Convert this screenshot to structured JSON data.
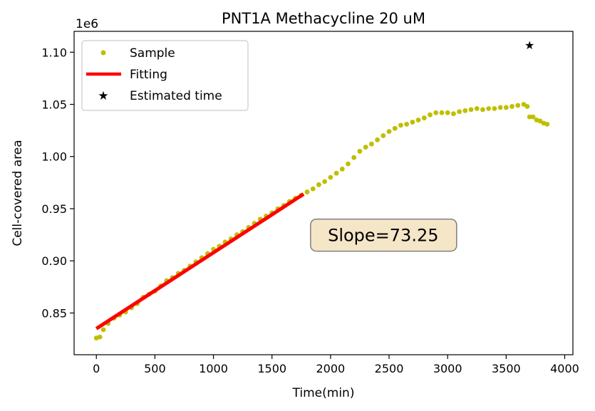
{
  "chart_data": {
    "type": "scatter",
    "title": "PNT1A Methacycline 20 uM",
    "xlabel": "Time(min)",
    "ylabel": "Cell-covered area",
    "y_offset_label": "1e6",
    "xlim": [
      -190,
      4070
    ],
    "ylim": [
      0.81,
      1.12
    ],
    "xticks": [
      0,
      500,
      1000,
      1500,
      2000,
      2500,
      3000,
      3500,
      4000
    ],
    "xtick_labels": [
      "0",
      "500",
      "1000",
      "1500",
      "2000",
      "2500",
      "3000",
      "3500",
      "4000"
    ],
    "yticks": [
      0.85,
      0.9,
      0.95,
      1.0,
      1.05,
      1.1
    ],
    "ytick_labels": [
      "0.85",
      "0.90",
      "0.95",
      "1.00",
      "1.05",
      "1.10"
    ],
    "legend": {
      "position": "top-left",
      "entries": [
        {
          "label": "Sample",
          "marker": "dot",
          "color": "#bfbf00"
        },
        {
          "label": "Fitting",
          "marker": "line",
          "color": "#ff0000"
        },
        {
          "label": "Estimated time",
          "marker": "star",
          "color": "#008000"
        }
      ]
    },
    "series": [
      {
        "name": "Sample",
        "marker": "dot",
        "color": "#bfbf00",
        "points": [
          [
            0,
            0.826
          ],
          [
            30,
            0.827
          ],
          [
            60,
            0.834
          ],
          [
            100,
            0.84
          ],
          [
            150,
            0.845
          ],
          [
            200,
            0.848
          ],
          [
            250,
            0.851
          ],
          [
            300,
            0.855
          ],
          [
            350,
            0.859
          ],
          [
            400,
            0.865
          ],
          [
            450,
            0.868
          ],
          [
            500,
            0.871
          ],
          [
            550,
            0.876
          ],
          [
            600,
            0.881
          ],
          [
            650,
            0.884
          ],
          [
            700,
            0.888
          ],
          [
            750,
            0.891
          ],
          [
            800,
            0.895
          ],
          [
            850,
            0.899
          ],
          [
            900,
            0.903
          ],
          [
            950,
            0.907
          ],
          [
            1000,
            0.911
          ],
          [
            1050,
            0.914
          ],
          [
            1100,
            0.918
          ],
          [
            1150,
            0.921
          ],
          [
            1200,
            0.925
          ],
          [
            1250,
            0.928
          ],
          [
            1300,
            0.932
          ],
          [
            1350,
            0.936
          ],
          [
            1400,
            0.94
          ],
          [
            1450,
            0.943
          ],
          [
            1500,
            0.946
          ],
          [
            1550,
            0.95
          ],
          [
            1600,
            0.953
          ],
          [
            1650,
            0.957
          ],
          [
            1700,
            0.96
          ],
          [
            1750,
            0.963
          ],
          [
            1800,
            0.966
          ],
          [
            1850,
            0.969
          ],
          [
            1900,
            0.973
          ],
          [
            1950,
            0.976
          ],
          [
            2000,
            0.98
          ],
          [
            2050,
            0.984
          ],
          [
            2100,
            0.988
          ],
          [
            2150,
            0.993
          ],
          [
            2200,
            0.999
          ],
          [
            2250,
            1.005
          ],
          [
            2300,
            1.009
          ],
          [
            2350,
            1.012
          ],
          [
            2400,
            1.016
          ],
          [
            2450,
            1.02
          ],
          [
            2500,
            1.024
          ],
          [
            2550,
            1.027
          ],
          [
            2600,
            1.03
          ],
          [
            2650,
            1.031
          ],
          [
            2700,
            1.033
          ],
          [
            2750,
            1.035
          ],
          [
            2800,
            1.037
          ],
          [
            2850,
            1.04
          ],
          [
            2900,
            1.042
          ],
          [
            2950,
            1.042
          ],
          [
            3000,
            1.042
          ],
          [
            3050,
            1.041
          ],
          [
            3100,
            1.043
          ],
          [
            3150,
            1.044
          ],
          [
            3200,
            1.045
          ],
          [
            3250,
            1.046
          ],
          [
            3300,
            1.045
          ],
          [
            3350,
            1.046
          ],
          [
            3400,
            1.046
          ],
          [
            3450,
            1.047
          ],
          [
            3500,
            1.047
          ],
          [
            3550,
            1.048
          ],
          [
            3600,
            1.049
          ],
          [
            3650,
            1.05
          ],
          [
            3680,
            1.048
          ],
          [
            3700,
            1.038
          ],
          [
            3730,
            1.038
          ],
          [
            3760,
            1.035
          ],
          [
            3790,
            1.034
          ],
          [
            3820,
            1.032
          ],
          [
            3850,
            1.031
          ]
        ]
      },
      {
        "name": "Fitting",
        "marker": "line",
        "color": "#ff0000",
        "points": [
          [
            0,
            0.835
          ],
          [
            1770,
            0.964
          ]
        ]
      },
      {
        "name": "Estimated time",
        "marker": "star",
        "color": "#008000",
        "points": [
          [
            3700,
            1.107
          ]
        ]
      }
    ],
    "annotation": {
      "text": "Slope=73.25",
      "x": 2450,
      "y": 0.925,
      "background": "#f5e6c8"
    }
  }
}
